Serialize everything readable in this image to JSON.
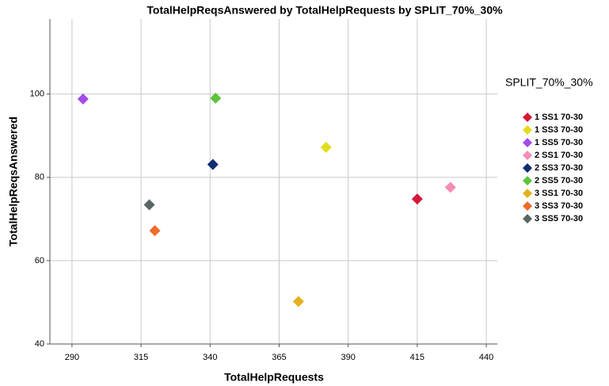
{
  "chart_data": {
    "type": "scatter",
    "title": "TotalHelpReqsAnswered by TotalHelpRequests by SPLIT_70%_30%",
    "x_label": "TotalHelpRequests",
    "y_label": "TotalHelpReqsAnswered",
    "legend_title": "SPLIT_70%_30%",
    "legend_position": "right",
    "grid": true,
    "xlim": [
      282,
      444
    ],
    "xticks": [
      290,
      315,
      340,
      365,
      390,
      415,
      440
    ],
    "ylim": [
      40,
      118
    ],
    "yticks": [
      40,
      60,
      80,
      100
    ],
    "series": [
      {
        "name": "1 SS1 70-30",
        "color": "#d6173b",
        "x": [
          415
        ],
        "values": [
          74.8
        ]
      },
      {
        "name": "1 SS3 70-30",
        "color": "#e3dc1c",
        "x": [
          382
        ],
        "values": [
          87.2
        ]
      },
      {
        "name": "1 SS5 70-30",
        "color": "#a24de8",
        "x": [
          294
        ],
        "values": [
          98.8
        ]
      },
      {
        "name": "2 SS1 70-30",
        "color": "#f58cb5",
        "x": [
          427
        ],
        "values": [
          77.6
        ]
      },
      {
        "name": "2 SS3 70-30",
        "color": "#122c70",
        "x": [
          341
        ],
        "values": [
          83.1
        ]
      },
      {
        "name": "2 SS5 70-30",
        "color": "#5ec43b",
        "x": [
          342
        ],
        "values": [
          99
        ]
      },
      {
        "name": "3 SS1 70-30",
        "color": "#e3b21e",
        "x": [
          372
        ],
        "values": [
          50.2
        ]
      },
      {
        "name": "3 SS3 70-30",
        "color": "#ee6b2a",
        "x": [
          320
        ],
        "values": [
          67.2
        ]
      },
      {
        "name": "3 SS5 70-30",
        "color": "#5a6664",
        "x": [
          318
        ],
        "values": [
          73.4
        ]
      }
    ]
  }
}
